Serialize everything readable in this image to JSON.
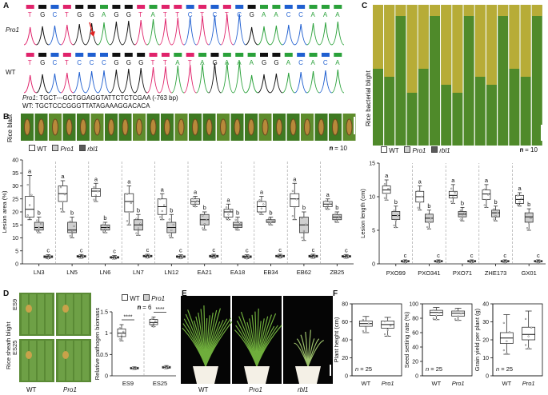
{
  "colors": {
    "A": "#2aa13a",
    "C": "#1f5fd0",
    "G": "#111111",
    "T": "#e0236b",
    "wt_box": "#ffffff",
    "pro1_box": "#cfcfcf",
    "rbl1_box": "#5a5a5a",
    "leaf_green": "#4f8a2a",
    "leaf_yellow": "#c9b23a",
    "arrow": "#e02020"
  },
  "panelA": {
    "label": "A",
    "row1_name": "Pro1",
    "row2_name": "WT",
    "row1_bases": [
      "T",
      "G",
      "C",
      "T",
      "G",
      "G",
      "A",
      "G",
      "G",
      "T",
      "A",
      "T",
      "T",
      "C",
      "T",
      "C",
      "T",
      "C",
      "G",
      "A",
      "A",
      "C",
      "C",
      "A",
      "A",
      "A"
    ],
    "row2_bases": [
      "T",
      "G",
      "C",
      "T",
      "C",
      "C",
      "C",
      "G",
      "G",
      "G",
      "T",
      "T",
      "A",
      "T",
      "A",
      "G",
      "A",
      "A",
      "A",
      "G",
      "G",
      "A",
      "C",
      "A",
      "C",
      "A"
    ],
    "seq_pro1_name": "Pro1",
    "seq_pro1": ": TGCT---GCTGGAGGTATTCTCTCGAA (-763 bp)",
    "seq_wt": "WT: TGCTCCCGGGTTATAGAAAGGACACA"
  },
  "panelB": {
    "label": "B",
    "side_title": "Rice blast",
    "legend": [
      "WT",
      "Pro1",
      "rbl1"
    ],
    "n_text": "n = 10",
    "ylabel": "Lesion area (%)"
  },
  "panelC": {
    "label": "C",
    "side_title": "Rice bacterial blight",
    "legend": [
      "WT",
      "Pro1",
      "rbl1"
    ],
    "n_text": "n = 10",
    "ylabel": "Lesion length (cm)"
  },
  "panelD": {
    "label": "D",
    "side_title": "Rice sheath blight",
    "row_labels": [
      "ES9",
      "ES25"
    ],
    "col_labels": [
      "WT",
      "Pro1"
    ],
    "legend": [
      "WT",
      "Pro1"
    ],
    "n_text": "n = 6",
    "sig": "****",
    "ylabel": "Relative pathogen biomass"
  },
  "panelE": {
    "label": "E",
    "labels": [
      "WT",
      "Pro1",
      "rbl1"
    ]
  },
  "panelF": {
    "label": "F",
    "ylabels": [
      "Plant height (cm)",
      "Seed setting rate (%)",
      "Grain yield per plant (g)"
    ],
    "n_text": "n = 25",
    "xlabels": [
      "WT",
      "Pro1"
    ]
  },
  "chart_data": [
    {
      "type": "box",
      "title": "",
      "ylabel": "Lesion area (%)",
      "ylim": [
        0,
        40
      ],
      "yticks": [
        0,
        5,
        10,
        15,
        20,
        25,
        30,
        35,
        40
      ],
      "categories": [
        "LN3",
        "LN5",
        "LN6",
        "LN7",
        "LN12",
        "EA21",
        "EA18",
        "EB34",
        "EB62",
        "ZB25"
      ],
      "series": [
        {
          "name": "WT",
          "median": [
            21,
            27,
            28,
            24,
            22,
            24,
            20,
            22,
            25,
            23
          ],
          "q1": [
            18,
            24,
            26,
            20,
            19,
            23,
            18,
            20,
            22,
            22
          ],
          "q3": [
            26,
            30,
            29,
            27,
            25,
            25,
            21,
            24,
            27,
            24
          ],
          "min": [
            17,
            20,
            24,
            15,
            17,
            22,
            17,
            19,
            17,
            21
          ],
          "max": [
            34,
            32,
            31,
            30,
            27,
            26,
            23,
            26,
            31,
            25
          ],
          "letter": "a"
        },
        {
          "name": "Pro1",
          "median": [
            14,
            13,
            14,
            15,
            14,
            17,
            15,
            16,
            15,
            18
          ],
          "q1": [
            13,
            12,
            13,
            13,
            12,
            15,
            14,
            16,
            12,
            17
          ],
          "q3": [
            16,
            16,
            15,
            17,
            16,
            19,
            16,
            17,
            18,
            19
          ],
          "min": [
            12,
            10,
            12,
            11,
            10,
            13,
            13,
            15,
            9,
            16
          ],
          "max": [
            18,
            18,
            16,
            19,
            19,
            20,
            18,
            18,
            20,
            20
          ],
          "letter": "b"
        },
        {
          "name": "rbl1",
          "median": [
            2.8,
            2.9,
            2.5,
            3.0,
            2.8,
            3.0,
            2.8,
            3.0,
            3.0,
            2.9
          ],
          "q1": [
            2.4,
            2.6,
            2.2,
            2.7,
            2.5,
            2.6,
            2.4,
            2.7,
            2.6,
            2.6
          ],
          "q3": [
            3.1,
            3.2,
            2.8,
            3.3,
            3.1,
            3.3,
            3.1,
            3.3,
            3.3,
            3.2
          ],
          "min": [
            2.0,
            2.2,
            1.9,
            2.3,
            2.1,
            2.2,
            2.0,
            2.3,
            2.2,
            2.2
          ],
          "max": [
            3.5,
            3.6,
            3.2,
            3.7,
            3.5,
            3.7,
            3.5,
            3.7,
            3.7,
            3.6
          ],
          "letter": "c"
        }
      ]
    },
    {
      "type": "box",
      "title": "",
      "ylabel": "Lesion length (cm)",
      "ylim": [
        0,
        15
      ],
      "yticks": [
        0,
        5,
        10,
        15
      ],
      "categories": [
        "PXO99",
        "PXO341",
        "PXO71",
        "ZHE173",
        "GX01"
      ],
      "series": [
        {
          "name": "WT",
          "median": [
            11.0,
            10.0,
            10.2,
            10.4,
            9.6
          ],
          "q1": [
            10.5,
            9.2,
            9.8,
            9.6,
            9.0
          ],
          "q3": [
            11.6,
            10.8,
            10.8,
            11.0,
            10.2
          ],
          "min": [
            9.5,
            8.0,
            9.0,
            8.4,
            8.6
          ],
          "max": [
            12.5,
            11.6,
            11.8,
            11.8,
            10.6
          ],
          "letter": "a"
        },
        {
          "name": "Pro1",
          "median": [
            7.2,
            6.8,
            7.4,
            7.6,
            7.0
          ],
          "q1": [
            6.6,
            6.2,
            7.0,
            7.0,
            6.2
          ],
          "q3": [
            7.8,
            7.4,
            7.8,
            8.0,
            7.6
          ],
          "min": [
            5.4,
            5.2,
            6.4,
            6.4,
            5.0
          ],
          "max": [
            8.6,
            8.0,
            8.4,
            8.6,
            8.2
          ],
          "letter": "b"
        },
        {
          "name": "rbl1",
          "median": [
            0.4,
            0.4,
            0.4,
            0.4,
            0.4
          ],
          "q1": [
            0.3,
            0.3,
            0.3,
            0.3,
            0.3
          ],
          "q3": [
            0.5,
            0.5,
            0.5,
            0.5,
            0.5
          ],
          "min": [
            0.2,
            0.2,
            0.2,
            0.2,
            0.2
          ],
          "max": [
            0.6,
            0.6,
            0.6,
            0.6,
            0.6
          ],
          "letter": "c"
        }
      ]
    },
    {
      "type": "box",
      "title": "",
      "ylabel": "Relative pathogen biomass",
      "ylim": [
        0,
        1.5
      ],
      "yticks": [
        0,
        0.5,
        1.0,
        1.5
      ],
      "categories": [
        "ES9",
        "ES25"
      ],
      "series": [
        {
          "name": "WT",
          "median": [
            1.0,
            1.25
          ],
          "q1": [
            0.92,
            1.2
          ],
          "q3": [
            1.1,
            1.32
          ],
          "min": [
            0.82,
            1.15
          ],
          "max": [
            1.2,
            1.38
          ]
        },
        {
          "name": "Pro1",
          "median": [
            0.18,
            0.2
          ],
          "q1": [
            0.16,
            0.18
          ],
          "q3": [
            0.2,
            0.22
          ],
          "min": [
            0.15,
            0.17
          ],
          "max": [
            0.21,
            0.24
          ]
        }
      ]
    },
    {
      "type": "box",
      "title": "",
      "ylabel": "Plant height (cm)",
      "ylim": [
        0,
        80
      ],
      "yticks": [
        0,
        20,
        40,
        60,
        80
      ],
      "categories": [
        "WT",
        "Pro1"
      ],
      "series": [
        {
          "name": "",
          "median": [
            58,
            57
          ],
          "q1": [
            55,
            53
          ],
          "q3": [
            61,
            61
          ],
          "min": [
            48,
            44
          ],
          "max": [
            66,
            65
          ]
        }
      ]
    },
    {
      "type": "box",
      "title": "",
      "ylabel": "Seed setting rate (%)",
      "ylim": [
        0,
        100
      ],
      "yticks": [
        0,
        20,
        40,
        60,
        80,
        100
      ],
      "categories": [
        "WT",
        "Pro1"
      ],
      "series": [
        {
          "name": "",
          "median": [
            88,
            87
          ],
          "q1": [
            84,
            83
          ],
          "q3": [
            91,
            90
          ],
          "min": [
            78,
            77
          ],
          "max": [
            95,
            94
          ]
        }
      ]
    },
    {
      "type": "box",
      "title": "",
      "ylabel": "Grain yield per plant (g)",
      "ylim": [
        0,
        40
      ],
      "yticks": [
        0,
        10,
        20,
        30,
        40
      ],
      "categories": [
        "WT",
        "Pro1"
      ],
      "series": [
        {
          "name": "",
          "median": [
            21,
            23
          ],
          "q1": [
            18,
            20
          ],
          "q3": [
            24,
            27
          ],
          "min": [
            12,
            15
          ],
          "max": [
            34,
            36
          ]
        }
      ]
    }
  ]
}
